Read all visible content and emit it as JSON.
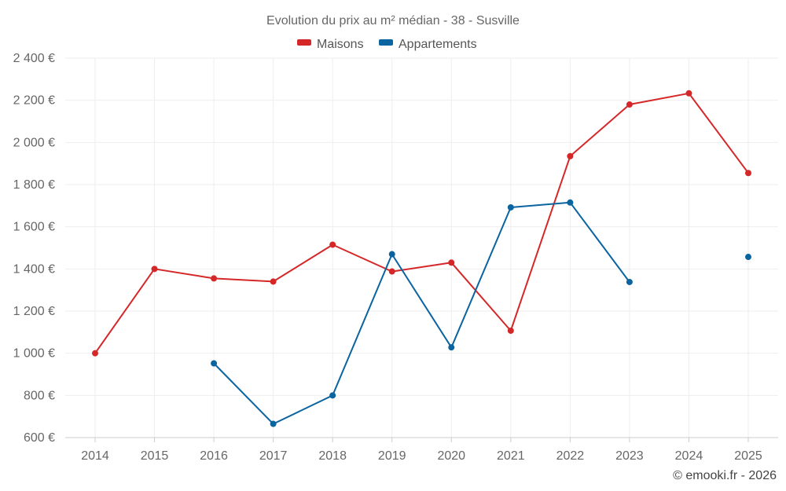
{
  "chart_data": {
    "type": "line",
    "title": "Evolution du prix au m² médian - 38 - Susville",
    "categories": [
      "2014",
      "2015",
      "2016",
      "2017",
      "2018",
      "2019",
      "2020",
      "2021",
      "2022",
      "2023",
      "2024",
      "2025"
    ],
    "y_ticks": [
      "600 €",
      "800 €",
      "1 000 €",
      "1 200 €",
      "1 400 €",
      "1 600 €",
      "1 800 €",
      "2 000 €",
      "2 200 €",
      "2 400 €"
    ],
    "ylim": [
      600,
      2400
    ],
    "y_tick_values": [
      600,
      800,
      1000,
      1200,
      1400,
      1600,
      1800,
      2000,
      2200,
      2400
    ],
    "legend_position": "top-center",
    "grid": true,
    "series": [
      {
        "name": "Maisons",
        "color": "#d62728",
        "values": [
          1000,
          1400,
          1355,
          1340,
          1515,
          1388,
          1430,
          1107,
          1935,
          2180,
          2233,
          1855
        ]
      },
      {
        "name": "Appartements",
        "color": "#0a64a0",
        "values": [
          null,
          null,
          952,
          665,
          800,
          1470,
          1028,
          1692,
          1715,
          1338,
          null,
          1457
        ]
      }
    ]
  },
  "credit": "© emooki.fr - 2026"
}
